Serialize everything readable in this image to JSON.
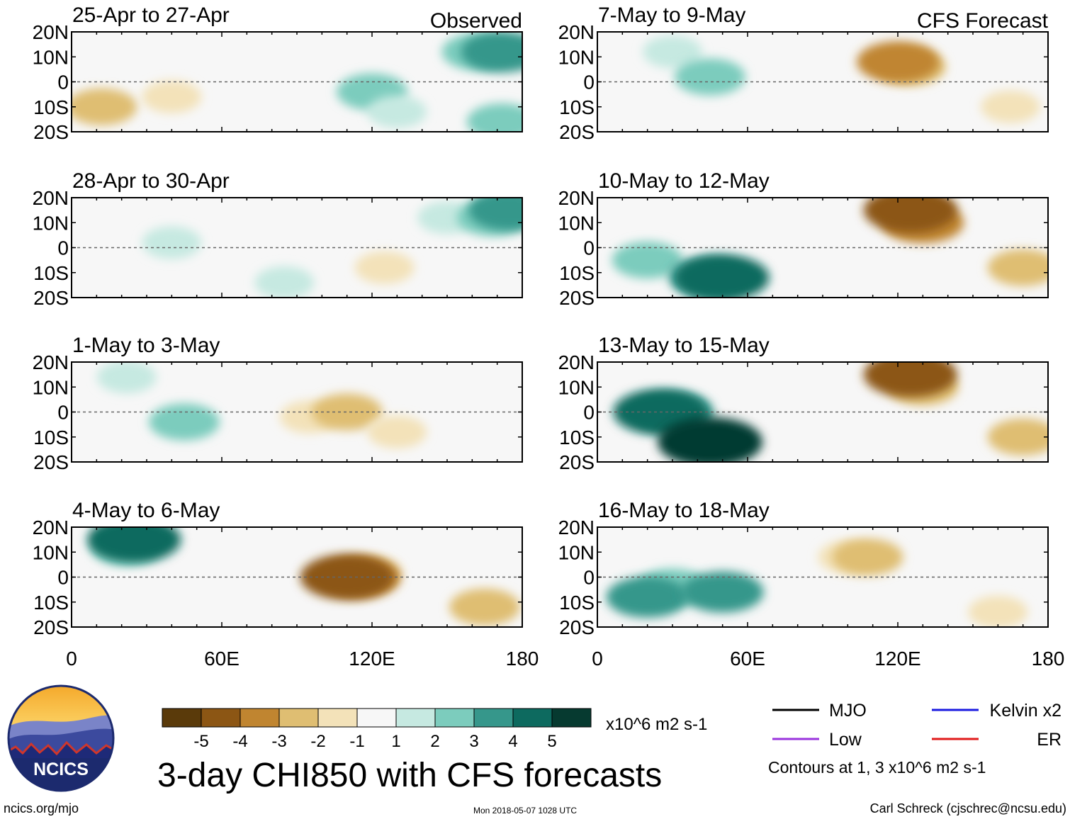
{
  "chart_data": {
    "type": "heatmap",
    "title": "3-day CHI850 with CFS forecasts",
    "variable": "CHI850 (850-hPa velocity potential) anomaly",
    "units": "x10^6 m2 s-1",
    "x_axis": {
      "range": [
        0,
        180
      ],
      "ticks": [
        0,
        60,
        120,
        180
      ],
      "tick_labels": [
        "0",
        "60E",
        "120E",
        "180"
      ]
    },
    "y_axis": {
      "range": [
        -20,
        20
      ],
      "ticks": [
        20,
        10,
        0,
        -10,
        -20
      ],
      "tick_labels": [
        "20N",
        "10N",
        "0",
        "10S",
        "20S"
      ]
    },
    "equator_line": "dashed",
    "columns": [
      {
        "header": "Observed",
        "panels": [
          {
            "period": "25-Apr to 27-Apr",
            "blobs": [
              {
                "lon": 12,
                "lat": -10,
                "value": -2
              },
              {
                "lon": 40,
                "lat": -6,
                "value": -1
              },
              {
                "lon": 120,
                "lat": -4,
                "value": 2
              },
              {
                "lon": 130,
                "lat": -12,
                "value": 1
              },
              {
                "lon": 162,
                "lat": 12,
                "value": 2
              },
              {
                "lon": 172,
                "lat": 12,
                "value": 3
              },
              {
                "lon": 172,
                "lat": -16,
                "value": 2
              }
            ]
          },
          {
            "period": "28-Apr to 30-Apr",
            "blobs": [
              {
                "lon": 40,
                "lat": 2,
                "value": 1
              },
              {
                "lon": 85,
                "lat": -14,
                "value": 1
              },
              {
                "lon": 125,
                "lat": -8,
                "value": -1
              },
              {
                "lon": 150,
                "lat": 12,
                "value": 1
              },
              {
                "lon": 168,
                "lat": 12,
                "value": 2
              },
              {
                "lon": 175,
                "lat": 15,
                "value": 3
              }
            ]
          },
          {
            "period": "1-May to 3-May",
            "blobs": [
              {
                "lon": 22,
                "lat": 14,
                "value": 1
              },
              {
                "lon": 45,
                "lat": -4,
                "value": 2
              },
              {
                "lon": 95,
                "lat": -2,
                "value": -1
              },
              {
                "lon": 110,
                "lat": 0,
                "value": -2
              },
              {
                "lon": 130,
                "lat": -8,
                "value": -1
              }
            ]
          },
          {
            "period": "4-May to 6-May",
            "blobs": [
              {
                "lon": 22,
                "lat": 12,
                "value": 2
              },
              {
                "lon": 25,
                "lat": 15,
                "value": 4
              },
              {
                "lon": 120,
                "lat": 2,
                "value": -1
              },
              {
                "lon": 115,
                "lat": 0,
                "value": -3
              },
              {
                "lon": 110,
                "lat": 0,
                "value": -4
              },
              {
                "lon": 165,
                "lat": -12,
                "value": -2
              }
            ]
          }
        ]
      },
      {
        "header": "CFS Forecast",
        "panels": [
          {
            "period": "7-May to 9-May",
            "blobs": [
              {
                "lon": 30,
                "lat": 12,
                "value": 1
              },
              {
                "lon": 45,
                "lat": 2,
                "value": 2
              },
              {
                "lon": 125,
                "lat": 6,
                "value": -2
              },
              {
                "lon": 120,
                "lat": 8,
                "value": -3
              },
              {
                "lon": 165,
                "lat": -10,
                "value": -1
              }
            ]
          },
          {
            "period": "10-May to 12-May",
            "blobs": [
              {
                "lon": 20,
                "lat": -5,
                "value": 2
              },
              {
                "lon": 45,
                "lat": -12,
                "value": 3
              },
              {
                "lon": 50,
                "lat": -12,
                "value": 4
              },
              {
                "lon": 130,
                "lat": 10,
                "value": -3
              },
              {
                "lon": 125,
                "lat": 15,
                "value": -4
              },
              {
                "lon": 170,
                "lat": -8,
                "value": -2
              }
            ]
          },
          {
            "period": "13-May to 15-May",
            "blobs": [
              {
                "lon": 30,
                "lat": 0,
                "value": 3
              },
              {
                "lon": 25,
                "lat": 0,
                "value": 4
              },
              {
                "lon": 45,
                "lat": -12,
                "value": 5
              },
              {
                "lon": 130,
                "lat": 10,
                "value": -2
              },
              {
                "lon": 125,
                "lat": 15,
                "value": -4
              },
              {
                "lon": 170,
                "lat": -10,
                "value": -2
              }
            ]
          },
          {
            "period": "16-May to 18-May",
            "blobs": [
              {
                "lon": 30,
                "lat": -4,
                "value": 2
              },
              {
                "lon": 20,
                "lat": -8,
                "value": 3
              },
              {
                "lon": 50,
                "lat": -6,
                "value": 3
              },
              {
                "lon": 100,
                "lat": 8,
                "value": -1
              },
              {
                "lon": 108,
                "lat": 8,
                "value": -2
              },
              {
                "lon": 160,
                "lat": -14,
                "value": -1
              }
            ]
          }
        ]
      }
    ],
    "colorbar": {
      "colors": [
        "#5a3a0a",
        "#8c5614",
        "#c08530",
        "#dfbe72",
        "#f3e2b9",
        "#f7f7f7",
        "#c6e9e1",
        "#7cccbd",
        "#36978b",
        "#0d6a5f",
        "#063a30"
      ],
      "labels": [
        "-5",
        "-4",
        "-3",
        "-2",
        "-1",
        "1",
        "2",
        "3",
        "4",
        "5"
      ],
      "units_label": "x10^6 m2 s-1"
    },
    "legend": {
      "items": [
        {
          "label": "MJO",
          "color": "#000000"
        },
        {
          "label": "Kelvin x2",
          "color": "#1a1ae0"
        },
        {
          "label": "Low",
          "color": "#9933dd"
        },
        {
          "label": "ER",
          "color": "#e01a1a"
        }
      ],
      "note": "Contours at 1, 3 x10^6 m2 s-1"
    }
  },
  "logo": {
    "text": "NCICS"
  },
  "footer": {
    "url": "ncics.org/mjo",
    "timestamp": "Mon 2018-05-07 1028 UTC",
    "credit": "Carl Schreck (cjschrec@ncsu.edu)"
  }
}
